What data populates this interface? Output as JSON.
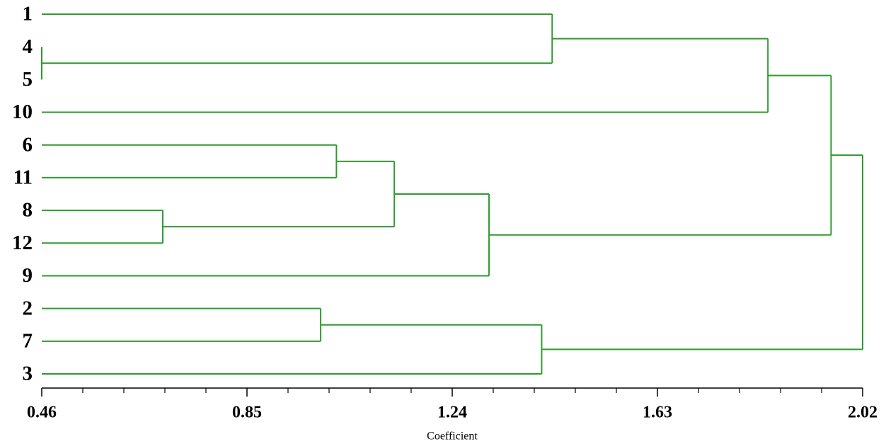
{
  "chart_data": {
    "type": "dendrogram",
    "x_label": "Coefficient",
    "color": "#2e9b2e",
    "leaves": [
      "1",
      "4",
      "5",
      "10",
      "6",
      "11",
      "8",
      "12",
      "9",
      "2",
      "7",
      "3"
    ],
    "merges": [
      {
        "children": [
          1,
          2
        ],
        "height": 0.46
      },
      {
        "children": [
          6,
          7
        ],
        "height": 0.69
      },
      {
        "children": [
          9,
          10
        ],
        "height": 0.99
      },
      {
        "children": [
          4,
          5
        ],
        "height": 1.02
      },
      {
        "children": [
          15,
          13
        ],
        "height": 1.13
      },
      {
        "children": [
          16,
          8
        ],
        "height": 1.31
      },
      {
        "children": [
          14,
          11
        ],
        "height": 1.41
      },
      {
        "children": [
          0,
          12
        ],
        "height": 1.43
      },
      {
        "children": [
          19,
          3
        ],
        "height": 1.84
      },
      {
        "children": [
          20,
          17
        ],
        "height": 1.96
      },
      {
        "children": [
          21,
          18
        ],
        "height": 2.02
      }
    ],
    "xlim": [
      0.46,
      2.02
    ],
    "xticks": [
      0.46,
      0.85,
      1.24,
      1.63,
      2.02
    ],
    "xminorticks": [
      0.538,
      0.616,
      0.694,
      0.772,
      0.928,
      1.006,
      1.084,
      1.162,
      1.318,
      1.396,
      1.474,
      1.552,
      1.708,
      1.786,
      1.864,
      1.942
    ]
  }
}
